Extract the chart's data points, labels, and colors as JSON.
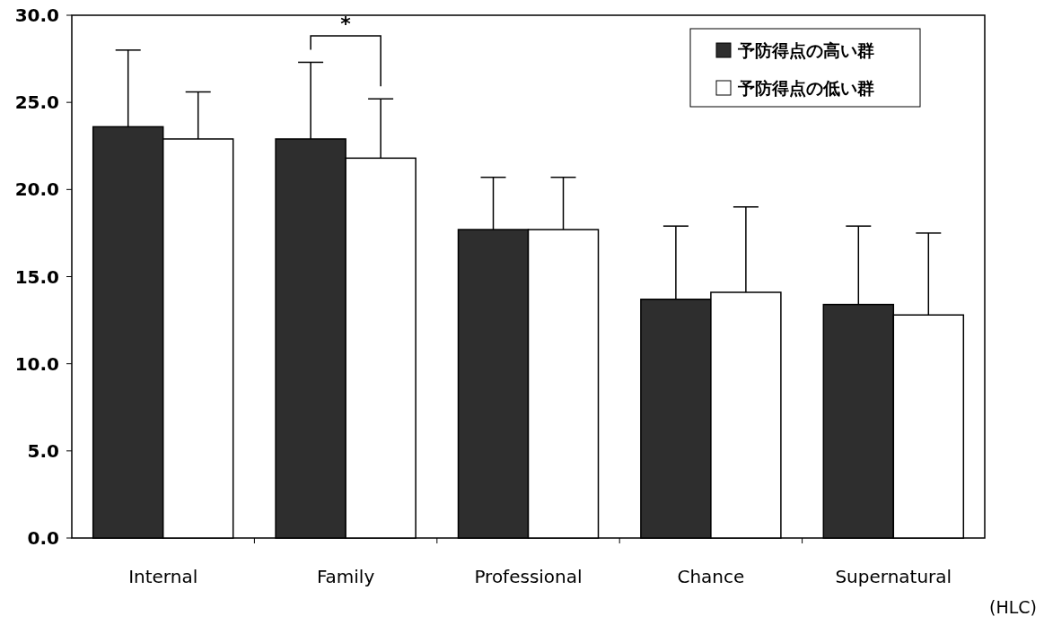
{
  "chart_data": {
    "type": "bar",
    "categories": [
      "Internal",
      "Family",
      "Professional",
      "Chance",
      "Supernatural"
    ],
    "series": [
      {
        "name": "予防得点の高い群",
        "color": "#2e2e2e",
        "values": [
          23.6,
          22.9,
          17.7,
          13.7,
          13.4
        ],
        "errors": [
          [
            23.6,
            28.0
          ],
          [
            22.9,
            27.3
          ],
          [
            17.7,
            20.7
          ],
          [
            13.7,
            17.9
          ],
          [
            13.4,
            17.9
          ]
        ]
      },
      {
        "name": "予防得点の低い群",
        "color": "#ffffff",
        "values": [
          22.9,
          21.8,
          17.7,
          14.1,
          12.8
        ],
        "errors": [
          [
            22.9,
            25.6
          ],
          [
            21.8,
            25.2
          ],
          [
            17.7,
            20.7
          ],
          [
            14.1,
            19.0
          ],
          [
            12.8,
            17.5
          ]
        ]
      }
    ],
    "ylim": [
      0,
      30
    ],
    "yticks": [
      {
        "value": 0,
        "label": "0.0"
      },
      {
        "value": 5,
        "label": "5.0"
      },
      {
        "value": 10,
        "label": "10.0"
      },
      {
        "value": 15,
        "label": "15.0"
      },
      {
        "value": 20,
        "label": "20.0"
      },
      {
        "value": 25,
        "label": "25.0"
      },
      {
        "value": 30,
        "label": "30.0"
      }
    ],
    "annotations": [
      "*",
      "(HLC)"
    ],
    "legend": "top right",
    "grid": false
  }
}
